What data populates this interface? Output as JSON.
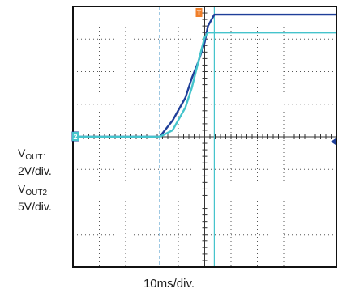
{
  "chart_data": {
    "type": "line",
    "x": [
      -32,
      -5,
      -1,
      3,
      5,
      7,
      9,
      10,
      12,
      50
    ],
    "series": [
      {
        "id": "vout1",
        "label_main": "V",
        "label_sub": "OUT1",
        "scale": "2V/div.",
        "marker": "1",
        "color": "#1f3f99",
        "y": [
          0,
          0,
          0.5,
          1.2,
          1.8,
          2.3,
          2.9,
          3.4,
          3.75,
          3.75
        ]
      },
      {
        "id": "vout2",
        "label_main": "V",
        "label_sub": "OUT2",
        "scale": "5V/div.",
        "marker": "2",
        "color": "#45c4cc",
        "y": [
          0,
          0,
          0.2,
          0.9,
          1.5,
          2.3,
          3.05,
          3.2,
          3.2,
          3.2
        ]
      }
    ],
    "xlim": [
      -32,
      50
    ],
    "ylim": [
      -4,
      4
    ],
    "xlabel": "10ms/div.",
    "grid": true,
    "trigger_marker": "T",
    "colors": {
      "frame": "#111111",
      "grid": "#555555",
      "trigger": "#f07f2a",
      "cursor": "#45c4cc"
    }
  }
}
